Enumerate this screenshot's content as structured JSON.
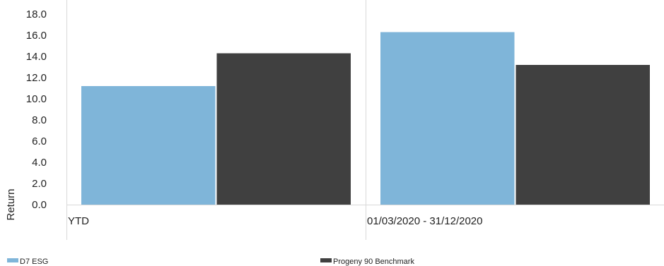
{
  "chart_data": {
    "type": "bar",
    "categories": [
      "YTD",
      "01/03/2020 - 31/12/2020"
    ],
    "series": [
      {
        "name": "D7 ESG",
        "values": [
          11.2,
          16.3
        ],
        "color": "#7fb5d9"
      },
      {
        "name": "Progeny 90 Benchmark",
        "values": [
          14.3,
          13.2
        ],
        "color": "#404040"
      }
    ],
    "ylabel": "Return",
    "ylim": [
      0,
      18
    ],
    "yticks": [
      "0.0",
      "2.0",
      "4.0",
      "6.0",
      "8.0",
      "10.0",
      "12.0",
      "14.0",
      "16.0",
      "18.0"
    ],
    "grid": "vertical category separators",
    "legend_position": "bottom"
  }
}
